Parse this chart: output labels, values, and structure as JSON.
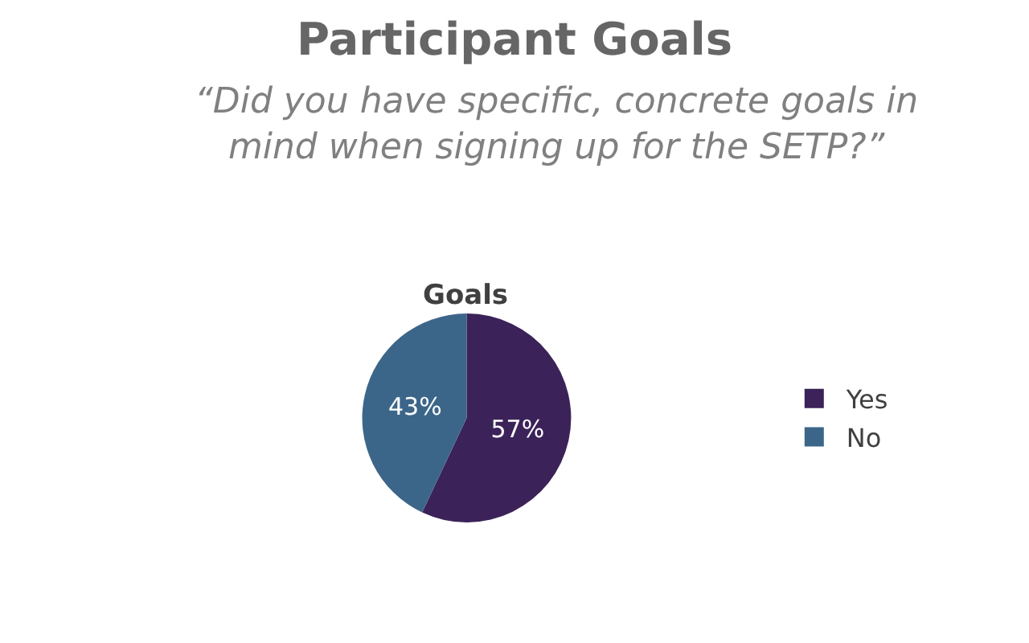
{
  "chart_data": {
    "type": "pie",
    "title": "Participant Goals",
    "subtitle": "“Did you have specific, concrete goals in mind when signing up for the SETP?”",
    "annotations": [
      "Goals"
    ],
    "categories": [
      "Yes",
      "No"
    ],
    "values": [
      57,
      43
    ],
    "colors": [
      "#3b2258",
      "#3c6689"
    ],
    "value_labels": [
      "57%",
      "43%"
    ],
    "legend": "right"
  }
}
